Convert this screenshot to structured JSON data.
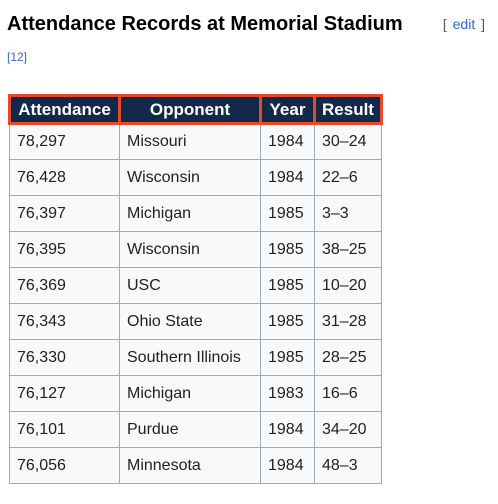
{
  "heading": {
    "title": "Attendance Records at Memorial Stadium",
    "edit_open": "[",
    "edit_label": "edit",
    "edit_close": "]"
  },
  "reference": "[12]",
  "table": {
    "headers": [
      "Attendance",
      "Opponent",
      "Year",
      "Result"
    ],
    "rows": [
      [
        "78,297",
        "Missouri",
        "1984",
        "30–24"
      ],
      [
        "76,428",
        "Wisconsin",
        "1984",
        "22–6"
      ],
      [
        "76,397",
        "Michigan",
        "1985",
        "3–3"
      ],
      [
        "76,395",
        "Wisconsin",
        "1985",
        "38–25"
      ],
      [
        "76,369",
        "USC",
        "1985",
        "10–20"
      ],
      [
        "76,343",
        "Ohio State",
        "1985",
        "31–28"
      ],
      [
        "76,330",
        "Southern Illinois",
        "1985",
        "28–25"
      ],
      [
        "76,127",
        "Michigan",
        "1983",
        "16–6"
      ],
      [
        "76,101",
        "Purdue",
        "1984",
        "34–20"
      ],
      [
        "76,056",
        "Minnesota",
        "1984",
        "48–3"
      ]
    ]
  },
  "colors": {
    "header_bg": "#13294b",
    "header_border": "#e84a27",
    "link": "#3366cc",
    "cell_bg": "#f8f9fa",
    "cell_border": "#a2a9b1"
  }
}
